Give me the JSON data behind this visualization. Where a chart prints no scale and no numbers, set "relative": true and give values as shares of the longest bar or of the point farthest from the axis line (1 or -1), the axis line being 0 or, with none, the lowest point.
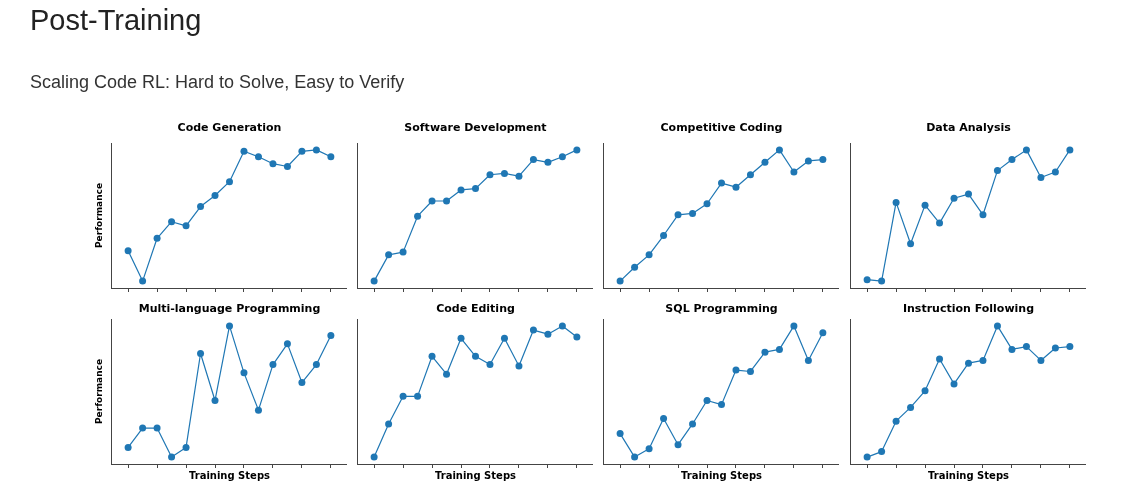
{
  "chart_data": [
    {
      "type": "other",
      "title": "Post-Training",
      "subtitle": "Scaling Code RL: Hard to Solve, Easy to Verify"
    },
    {
      "type": "line",
      "title": "Code Generation",
      "ylabel": "Performance",
      "relative": true,
      "tick_labels": false,
      "marker": "circle",
      "color": "#1f77b4",
      "categories": [
        null,
        null,
        null,
        null,
        null,
        null,
        null,
        null,
        null,
        null,
        null,
        null,
        null,
        null,
        null
      ],
      "values": [
        0.27,
        0.05,
        0.36,
        0.48,
        0.45,
        0.59,
        0.67,
        0.77,
        0.99,
        0.95,
        0.9,
        0.88,
        0.99,
        1,
        0.95
      ]
    },
    {
      "type": "line",
      "title": "Software Development",
      "relative": true,
      "tick_labels": false,
      "marker": "circle",
      "color": "#1f77b4",
      "categories": [
        null,
        null,
        null,
        null,
        null,
        null,
        null,
        null,
        null,
        null,
        null,
        null,
        null,
        null,
        null
      ],
      "values": [
        0.05,
        0.24,
        0.26,
        0.52,
        0.63,
        0.63,
        0.71,
        0.72,
        0.82,
        0.83,
        0.81,
        0.93,
        0.91,
        0.95,
        1
      ]
    },
    {
      "type": "line",
      "title": "Competitive Coding",
      "relative": true,
      "tick_labels": false,
      "marker": "circle",
      "color": "#1f77b4",
      "categories": [
        null,
        null,
        null,
        null,
        null,
        null,
        null,
        null,
        null,
        null,
        null,
        null,
        null,
        null,
        null
      ],
      "values": [
        0.05,
        0.15,
        0.24,
        0.38,
        0.53,
        0.54,
        0.61,
        0.76,
        0.73,
        0.82,
        0.91,
        1,
        0.84,
        0.92,
        0.93
      ]
    },
    {
      "type": "line",
      "title": "Data Analysis",
      "relative": true,
      "tick_labels": false,
      "marker": "circle",
      "color": "#1f77b4",
      "categories": [
        null,
        null,
        null,
        null,
        null,
        null,
        null,
        null,
        null,
        null,
        null,
        null,
        null,
        null,
        null
      ],
      "values": [
        0.06,
        0.05,
        0.62,
        0.32,
        0.6,
        0.47,
        0.65,
        0.68,
        0.53,
        0.85,
        0.93,
        1,
        0.8,
        0.84,
        1
      ]
    },
    {
      "type": "line",
      "title": "Multi-language Programming",
      "xlabel": "Training Steps",
      "ylabel": "Performance",
      "relative": true,
      "tick_labels": false,
      "marker": "circle",
      "color": "#1f77b4",
      "categories": [
        null,
        null,
        null,
        null,
        null,
        null,
        null,
        null,
        null,
        null,
        null,
        null,
        null,
        null,
        null
      ],
      "values": [
        0.12,
        0.26,
        0.26,
        0.05,
        0.12,
        0.8,
        0.46,
        1,
        0.66,
        0.39,
        0.72,
        0.87,
        0.59,
        0.72,
        0.93
      ]
    },
    {
      "type": "line",
      "title": "Code Editing",
      "xlabel": "Training Steps",
      "relative": true,
      "tick_labels": false,
      "marker": "circle",
      "color": "#1f77b4",
      "categories": [
        null,
        null,
        null,
        null,
        null,
        null,
        null,
        null,
        null,
        null,
        null,
        null,
        null,
        null,
        null
      ],
      "values": [
        0.05,
        0.29,
        0.49,
        0.49,
        0.78,
        0.65,
        0.91,
        0.78,
        0.72,
        0.91,
        0.71,
        0.97,
        0.94,
        1,
        0.92
      ]
    },
    {
      "type": "line",
      "title": "SQL Programming",
      "xlabel": "Training Steps",
      "relative": true,
      "tick_labels": false,
      "marker": "circle",
      "color": "#1f77b4",
      "categories": [
        null,
        null,
        null,
        null,
        null,
        null,
        null,
        null,
        null,
        null,
        null,
        null,
        null,
        null,
        null
      ],
      "values": [
        0.22,
        0.05,
        0.11,
        0.33,
        0.14,
        0.29,
        0.46,
        0.43,
        0.68,
        0.67,
        0.81,
        0.83,
        1,
        0.75,
        0.95
      ]
    },
    {
      "type": "line",
      "title": "Instruction Following",
      "xlabel": "Training Steps",
      "relative": true,
      "tick_labels": false,
      "marker": "circle",
      "color": "#1f77b4",
      "categories": [
        null,
        null,
        null,
        null,
        null,
        null,
        null,
        null,
        null,
        null,
        null,
        null,
        null,
        null,
        null
      ],
      "values": [
        0.05,
        0.09,
        0.31,
        0.41,
        0.53,
        0.76,
        0.58,
        0.73,
        0.75,
        1,
        0.83,
        0.85,
        0.75,
        0.84,
        0.85
      ]
    }
  ]
}
